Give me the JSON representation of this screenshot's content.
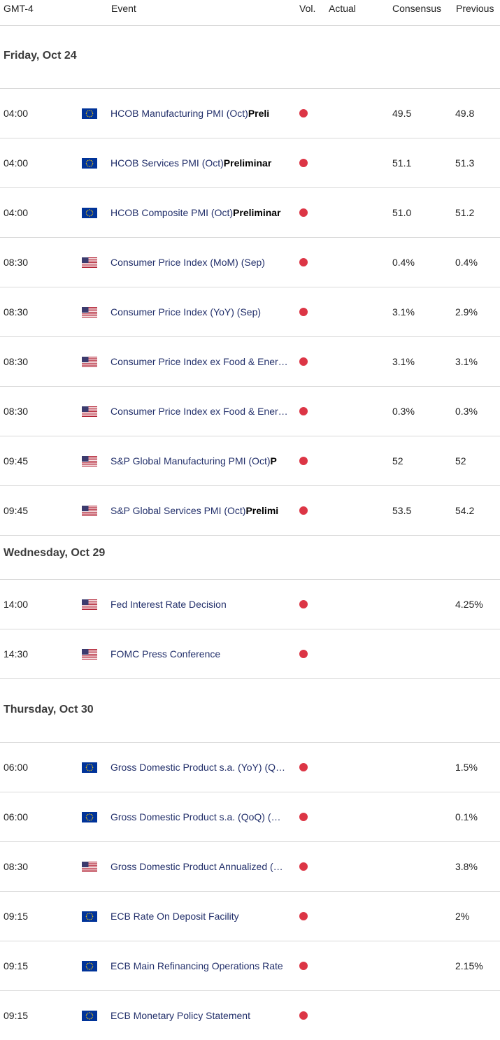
{
  "header": {
    "timezone": "GMT-4",
    "event": "Event",
    "vol": "Vol.",
    "actual": "Actual",
    "consensus": "Consensus",
    "previous": "Previous"
  },
  "colors": {
    "eu_flag": "#003399",
    "eu_star": "#ffcc00",
    "impact_high": "#dc3545",
    "event_text": "#23306b"
  },
  "days": [
    {
      "label": "Friday, Oct 24",
      "events": [
        {
          "time": "04:00",
          "flag": "eu-flag-icon",
          "name": "HCOB Manufacturing PMI (Oct)",
          "suffix": "Preli",
          "consensus": "49.5",
          "previous": "49.8"
        },
        {
          "time": "04:00",
          "flag": "eu-flag-icon",
          "name": "HCOB Services PMI (Oct)",
          "suffix": "Preliminar",
          "consensus": "51.1",
          "previous": "51.3"
        },
        {
          "time": "04:00",
          "flag": "eu-flag-icon",
          "name": "HCOB Composite PMI (Oct)",
          "suffix": "Preliminar",
          "consensus": "51.0",
          "previous": "51.2"
        },
        {
          "time": "08:30",
          "flag": "us-flag-icon",
          "name": "Consumer Price Index (MoM) (Sep)",
          "suffix": "",
          "consensus": "0.4%",
          "previous": "0.4%"
        },
        {
          "time": "08:30",
          "flag": "us-flag-icon",
          "name": "Consumer Price Index (YoY) (Sep)",
          "suffix": "",
          "consensus": "3.1%",
          "previous": "2.9%"
        },
        {
          "time": "08:30",
          "flag": "us-flag-icon",
          "name": "Consumer Price Index ex Food & Ener…",
          "suffix": "",
          "consensus": "3.1%",
          "previous": "3.1%"
        },
        {
          "time": "08:30",
          "flag": "us-flag-icon",
          "name": "Consumer Price Index ex Food & Ener…",
          "suffix": "",
          "consensus": "0.3%",
          "previous": "0.3%"
        },
        {
          "time": "09:45",
          "flag": "us-flag-icon",
          "name": "S&P Global Manufacturing PMI (Oct)",
          "suffix": "P",
          "consensus": "52",
          "previous": "52"
        },
        {
          "time": "09:45",
          "flag": "us-flag-icon",
          "name": "S&P Global Services PMI (Oct)",
          "suffix": "Prelimi",
          "consensus": "53.5",
          "previous": "54.2"
        }
      ]
    },
    {
      "label": "Wednesday, Oct 29",
      "events": [
        {
          "time": "14:00",
          "flag": "us-flag-icon",
          "name": "Fed Interest Rate Decision",
          "suffix": "",
          "consensus": "",
          "previous": "4.25%"
        },
        {
          "time": "14:30",
          "flag": "us-flag-icon",
          "name": "FOMC Press Conference",
          "suffix": "",
          "consensus": "",
          "previous": ""
        }
      ]
    },
    {
      "label": "Thursday, Oct 30",
      "events": [
        {
          "time": "06:00",
          "flag": "eu-flag-icon",
          "name": "Gross Domestic Product s.a. (YoY) (Q…",
          "suffix": "",
          "consensus": "",
          "previous": "1.5%"
        },
        {
          "time": "06:00",
          "flag": "eu-flag-icon",
          "name": "Gross Domestic Product s.a. (QoQ) (…",
          "suffix": "",
          "consensus": "",
          "previous": "0.1%"
        },
        {
          "time": "08:30",
          "flag": "us-flag-icon",
          "name": "Gross Domestic Product Annualized (…",
          "suffix": "",
          "consensus": "",
          "previous": "3.8%"
        },
        {
          "time": "09:15",
          "flag": "eu-flag-icon",
          "name": "ECB Rate On Deposit Facility",
          "suffix": "",
          "consensus": "",
          "previous": "2%"
        },
        {
          "time": "09:15",
          "flag": "eu-flag-icon",
          "name": "ECB Main Refinancing Operations Rate",
          "suffix": "",
          "consensus": "",
          "previous": "2.15%"
        },
        {
          "time": "09:15",
          "flag": "eu-flag-icon",
          "name": "ECB Monetary Policy Statement",
          "suffix": "",
          "consensus": "",
          "previous": ""
        }
      ]
    }
  ]
}
